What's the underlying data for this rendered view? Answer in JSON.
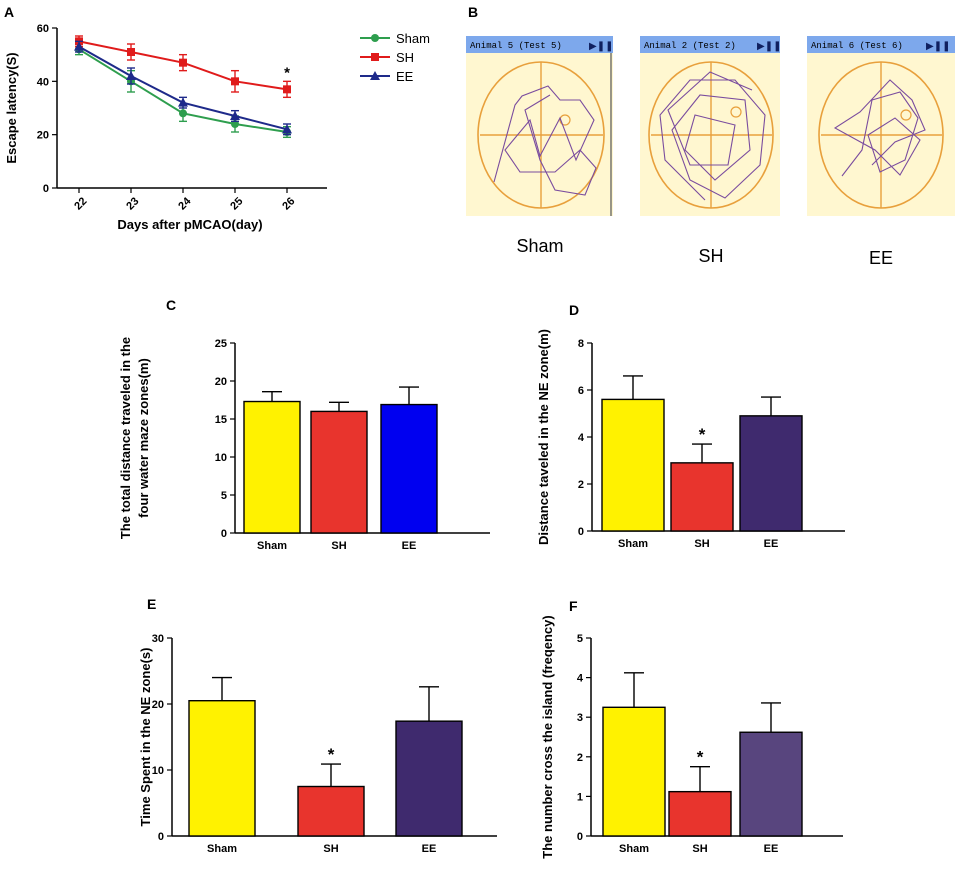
{
  "panels": {
    "a": "A",
    "b": "B",
    "c": "C",
    "d": "D",
    "e": "E",
    "f": "F"
  },
  "colors": {
    "yellow": "#FFF200",
    "red": "#E8342D",
    "blue": "#0000F0",
    "purple": "#3F2A6E",
    "purple_f": "#58457E",
    "sham": "#2E9E4E",
    "sh": "#E01B1B",
    "ee": "#1E2A8A"
  },
  "trackB": {
    "headers": [
      "Animal 5 (Test 5)",
      "Animal 2 (Test 2)",
      "Animal 6 (Test 6)"
    ],
    "header_icon": "play-pause-icon",
    "labels": [
      "Sham",
      "SH",
      "EE"
    ]
  },
  "chart_data": [
    {
      "id": "A",
      "type": "line",
      "xlabel": "Days after pMCAO(day)",
      "ylabel": "Escape latency(S)",
      "x": [
        22,
        23,
        24,
        25,
        26
      ],
      "xticks": [
        "22",
        "23",
        "24",
        "25",
        "26"
      ],
      "ylim": [
        0,
        60
      ],
      "yticks": [
        "0",
        "20",
        "40",
        "60"
      ],
      "series": [
        {
          "name": "Sham",
          "values": [
            52,
            40,
            28,
            24,
            21
          ],
          "errors": [
            2,
            4,
            3,
            3,
            2
          ]
        },
        {
          "name": "SH",
          "values": [
            55,
            51,
            47,
            40,
            37
          ],
          "errors": [
            2,
            3,
            3,
            4,
            3
          ]
        },
        {
          "name": "EE",
          "values": [
            53,
            42,
            32,
            27,
            22
          ],
          "errors": [
            2,
            3,
            2,
            2,
            2
          ]
        }
      ],
      "annotations": [
        {
          "text": "*",
          "x": 26,
          "series": "SH"
        }
      ]
    },
    {
      "id": "C",
      "type": "bar",
      "ylabel": [
        "The total distance traveled in the",
        "four water maze zones(m)"
      ],
      "categories": [
        "Sham",
        "SH",
        "EE"
      ],
      "values": [
        17.3,
        16.0,
        16.9
      ],
      "errors": [
        1.3,
        1.2,
        2.3
      ],
      "ylim": [
        0,
        25
      ],
      "yticks": [
        "0",
        "5",
        "10",
        "15",
        "20",
        "25"
      ],
      "sig": [
        "",
        "",
        ""
      ]
    },
    {
      "id": "D",
      "type": "bar",
      "ylabel": [
        "Distance taveled in the NE zone(m)"
      ],
      "categories": [
        "Sham",
        "SH",
        "EE"
      ],
      "values": [
        5.6,
        2.9,
        4.9
      ],
      "errors": [
        1.0,
        0.8,
        0.8
      ],
      "ylim": [
        0,
        8
      ],
      "yticks": [
        "0",
        "2",
        "4",
        "6",
        "8"
      ],
      "sig": [
        "",
        "*",
        ""
      ]
    },
    {
      "id": "E",
      "type": "bar",
      "ylabel": [
        "Time Spent in the NE zone(s)"
      ],
      "categories": [
        "Sham",
        "SH",
        "EE"
      ],
      "values": [
        20.5,
        7.5,
        17.4
      ],
      "errors": [
        3.5,
        3.4,
        5.2
      ],
      "ylim": [
        0,
        30
      ],
      "yticks": [
        "0",
        "10",
        "20",
        "30"
      ],
      "sig": [
        "",
        "*",
        ""
      ]
    },
    {
      "id": "F",
      "type": "bar",
      "ylabel": [
        "The number cross the island (freqency)"
      ],
      "categories": [
        "Sham",
        "SH",
        "EE"
      ],
      "values": [
        3.25,
        1.12,
        2.62
      ],
      "errors": [
        0.87,
        0.63,
        0.74
      ],
      "ylim": [
        0,
        5
      ],
      "yticks": [
        "0",
        "1",
        "2",
        "3",
        "4",
        "5"
      ],
      "sig": [
        "",
        "*",
        ""
      ]
    }
  ]
}
